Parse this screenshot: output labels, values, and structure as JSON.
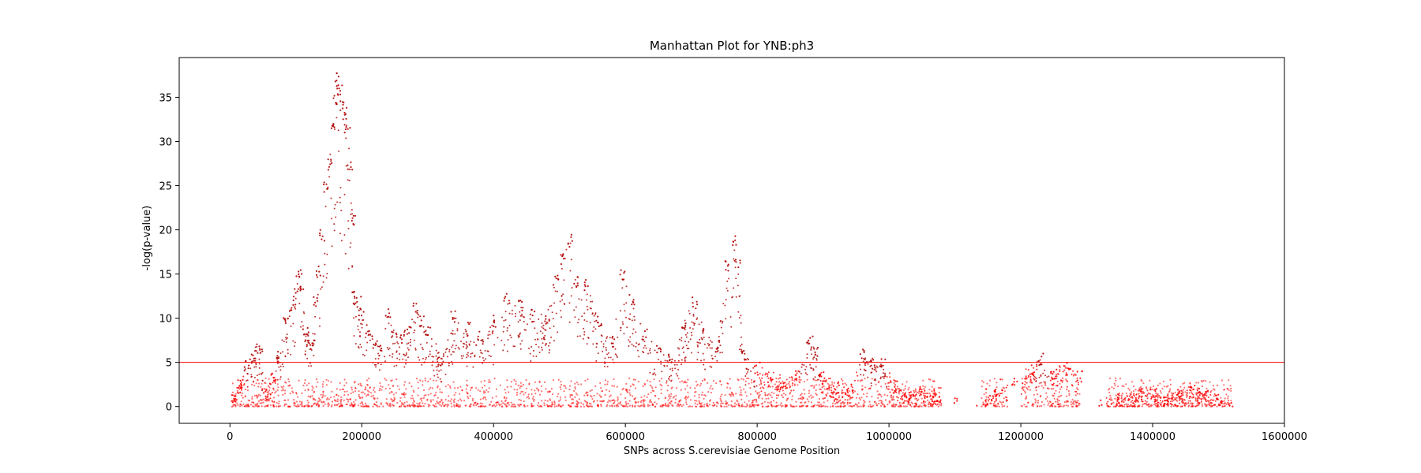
{
  "chart_data": {
    "type": "scatter",
    "title": "Manhattan Plot for YNB:ph3",
    "xlabel": "SNPs across S.cerevisiae Genome Position",
    "ylabel": "-log(p-value)",
    "xlim": [
      -77000,
      1600000
    ],
    "ylim": [
      -1.9,
      39.5
    ],
    "xticks": [
      0,
      200000,
      400000,
      600000,
      800000,
      1000000,
      1200000,
      1400000,
      1600000
    ],
    "yticks": [
      0,
      5,
      10,
      15,
      20,
      25,
      30,
      35
    ],
    "grid": false,
    "legend": "none",
    "threshold": {
      "y": 5,
      "color": "#ff0000"
    },
    "point_color": "#ff0000",
    "series": [
      {
        "values_note": "",
        "x": [
          5000,
          15000,
          25000,
          35000,
          45000,
          55000,
          65000,
          75000,
          85000,
          95000,
          100000,
          105000,
          110000,
          115000,
          120000,
          125000,
          130000,
          135000,
          140000,
          145000,
          150000,
          155000,
          160000,
          163000,
          166000,
          170000,
          174000,
          178000,
          182000,
          186000,
          190000,
          195000,
          200000,
          210000,
          220000,
          230000,
          240000,
          250000,
          260000,
          270000,
          280000,
          290000,
          300000,
          320000,
          340000,
          360000,
          380000,
          400000,
          420000,
          440000,
          460000,
          480000,
          495000,
          505000,
          515000,
          525000,
          540000,
          560000,
          580000,
          595000,
          610000,
          630000,
          650000,
          670000,
          690000,
          705000,
          720000,
          740000,
          755000,
          765000,
          770000,
          780000,
          800000,
          820000,
          840000,
          860000,
          880000,
          890000,
          900000,
          920000,
          940000,
          960000,
          975000,
          990000,
          1010000,
          1030000,
          1050000,
          1070000,
          1100000,
          1130000,
          1160000,
          1190000,
          1220000,
          1230000,
          1250000,
          1270000,
          1290000,
          1320000,
          1350000,
          1380000,
          1400000,
          1420000,
          1440000,
          1460000,
          1470000,
          1480000,
          1500000,
          1520000
        ],
        "y": [
          1.5,
          3.5,
          5.5,
          6.5,
          7.5,
          2.0,
          4.0,
          6.5,
          10.5,
          12.0,
          13.5,
          16.0,
          14.0,
          9.0,
          8.5,
          7.5,
          12.5,
          16.0,
          20.0,
          25.5,
          28.0,
          32.0,
          35.5,
          37.8,
          36.5,
          35.0,
          34.0,
          32.0,
          28.0,
          22.0,
          13.0,
          12.5,
          11.0,
          9.5,
          8.0,
          7.0,
          11.5,
          9.0,
          8.5,
          9.5,
          12.0,
          10.5,
          9.5,
          6.0,
          11.0,
          9.5,
          8.5,
          10.5,
          13.0,
          12.0,
          11.0,
          10.5,
          15.0,
          17.5,
          19.5,
          15.0,
          14.5,
          10.5,
          8.0,
          15.5,
          13.0,
          9.0,
          7.5,
          6.0,
          10.0,
          12.5,
          9.0,
          7.5,
          16.5,
          19.5,
          17.0,
          6.5,
          5.0,
          4.0,
          3.5,
          4.5,
          8.0,
          7.0,
          4.0,
          3.0,
          2.5,
          6.5,
          5.5,
          6.0,
          3.0,
          2.0,
          2.5,
          2.0,
          1.0,
          0.5,
          2.0,
          3.5,
          5.0,
          6.0,
          4.5,
          5.0,
          4.0,
          1.0,
          1.5,
          2.0,
          2.0,
          1.5,
          2.0,
          2.5,
          2.2,
          2.0,
          1.5,
          0.5
        ]
      }
    ]
  }
}
